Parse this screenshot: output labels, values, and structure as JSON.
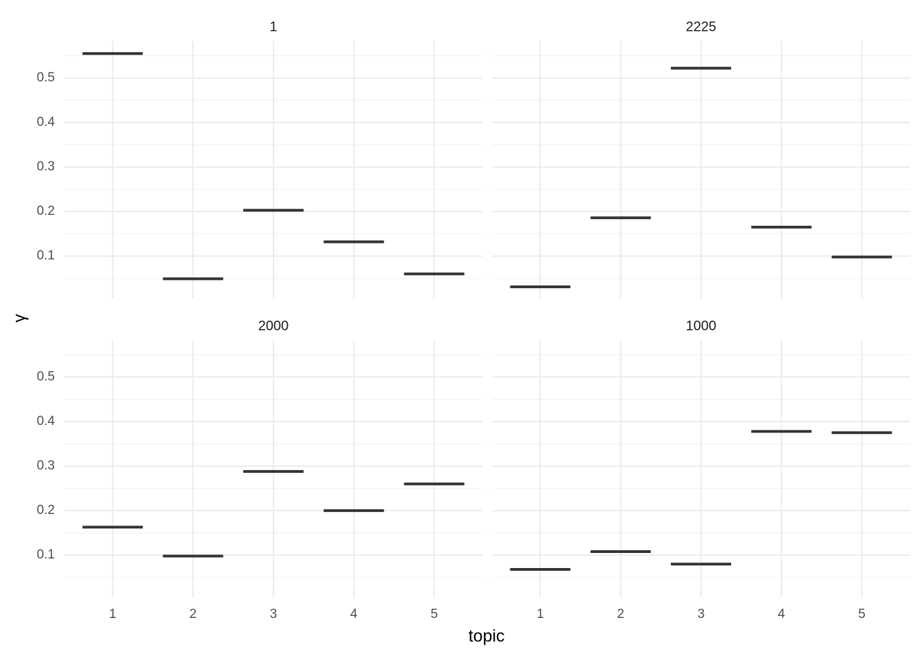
{
  "chart_data": {
    "type": "crossbar",
    "x_label": "topic",
    "y_label": "γ",
    "categories": [
      "1",
      "2",
      "3",
      "4",
      "5"
    ],
    "ylim": [
      0.005,
      0.583
    ],
    "yticks": [
      0.1,
      0.2,
      0.3,
      0.4,
      0.5
    ],
    "minor_yticks": [
      0.05,
      0.15,
      0.25,
      0.35,
      0.45,
      0.55
    ],
    "grid": true,
    "color": "#333333",
    "facets": [
      {
        "title": "1",
        "values": [
          0.555,
          0.049,
          0.203,
          0.132,
          0.06
        ]
      },
      {
        "title": "2225",
        "values": [
          0.031,
          0.186,
          0.522,
          0.165,
          0.098
        ]
      },
      {
        "title": "2000",
        "values": [
          0.163,
          0.098,
          0.288,
          0.2,
          0.26
        ]
      },
      {
        "title": "1000",
        "values": [
          0.068,
          0.108,
          0.08,
          0.378,
          0.375
        ]
      }
    ]
  }
}
